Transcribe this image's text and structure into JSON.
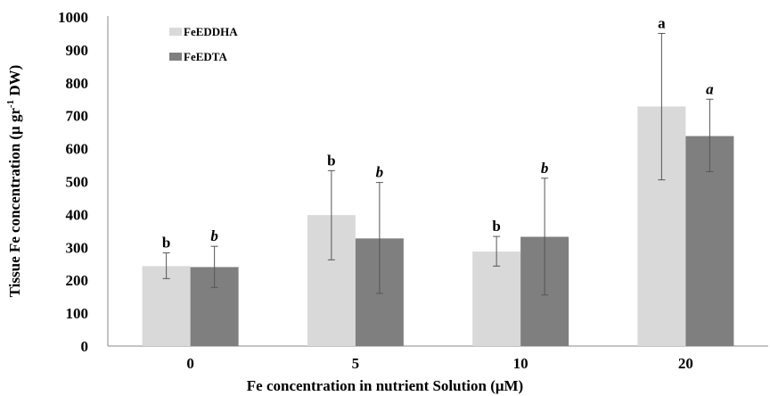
{
  "chart_data": {
    "type": "bar",
    "categories": [
      "0",
      "5",
      "10",
      "20"
    ],
    "series": [
      {
        "name": "FeEDDHA",
        "color": "#d9d9d9",
        "values": [
          243,
          398,
          287,
          728
        ],
        "error_low": [
          205,
          262,
          243,
          505
        ],
        "error_high": [
          283,
          533,
          333,
          950
        ],
        "labels": [
          "b",
          "b",
          "b",
          "a"
        ],
        "label_style": "normal"
      },
      {
        "name": "FeEDTA",
        "color": "#7f7f7f",
        "values": [
          240,
          327,
          332,
          638
        ],
        "error_low": [
          178,
          160,
          155,
          530
        ],
        "error_high": [
          303,
          497,
          510,
          750
        ],
        "labels": [
          "b",
          "b",
          "b",
          "a"
        ],
        "label_style": "italic"
      }
    ],
    "xlabel": "Fe concentration in nutrient Solution (μM)",
    "ylabel_main": "Tissue Fe concentration (μ gr",
    "ylabel_sup": "-1",
    "ylabel_end": " DW)",
    "ylim": [
      0,
      1000
    ],
    "yticks": [
      "0",
      "100",
      "200",
      "300",
      "400",
      "500",
      "600",
      "700",
      "800",
      "900",
      "1000"
    ],
    "grid": false,
    "legend_position": "top-left"
  }
}
